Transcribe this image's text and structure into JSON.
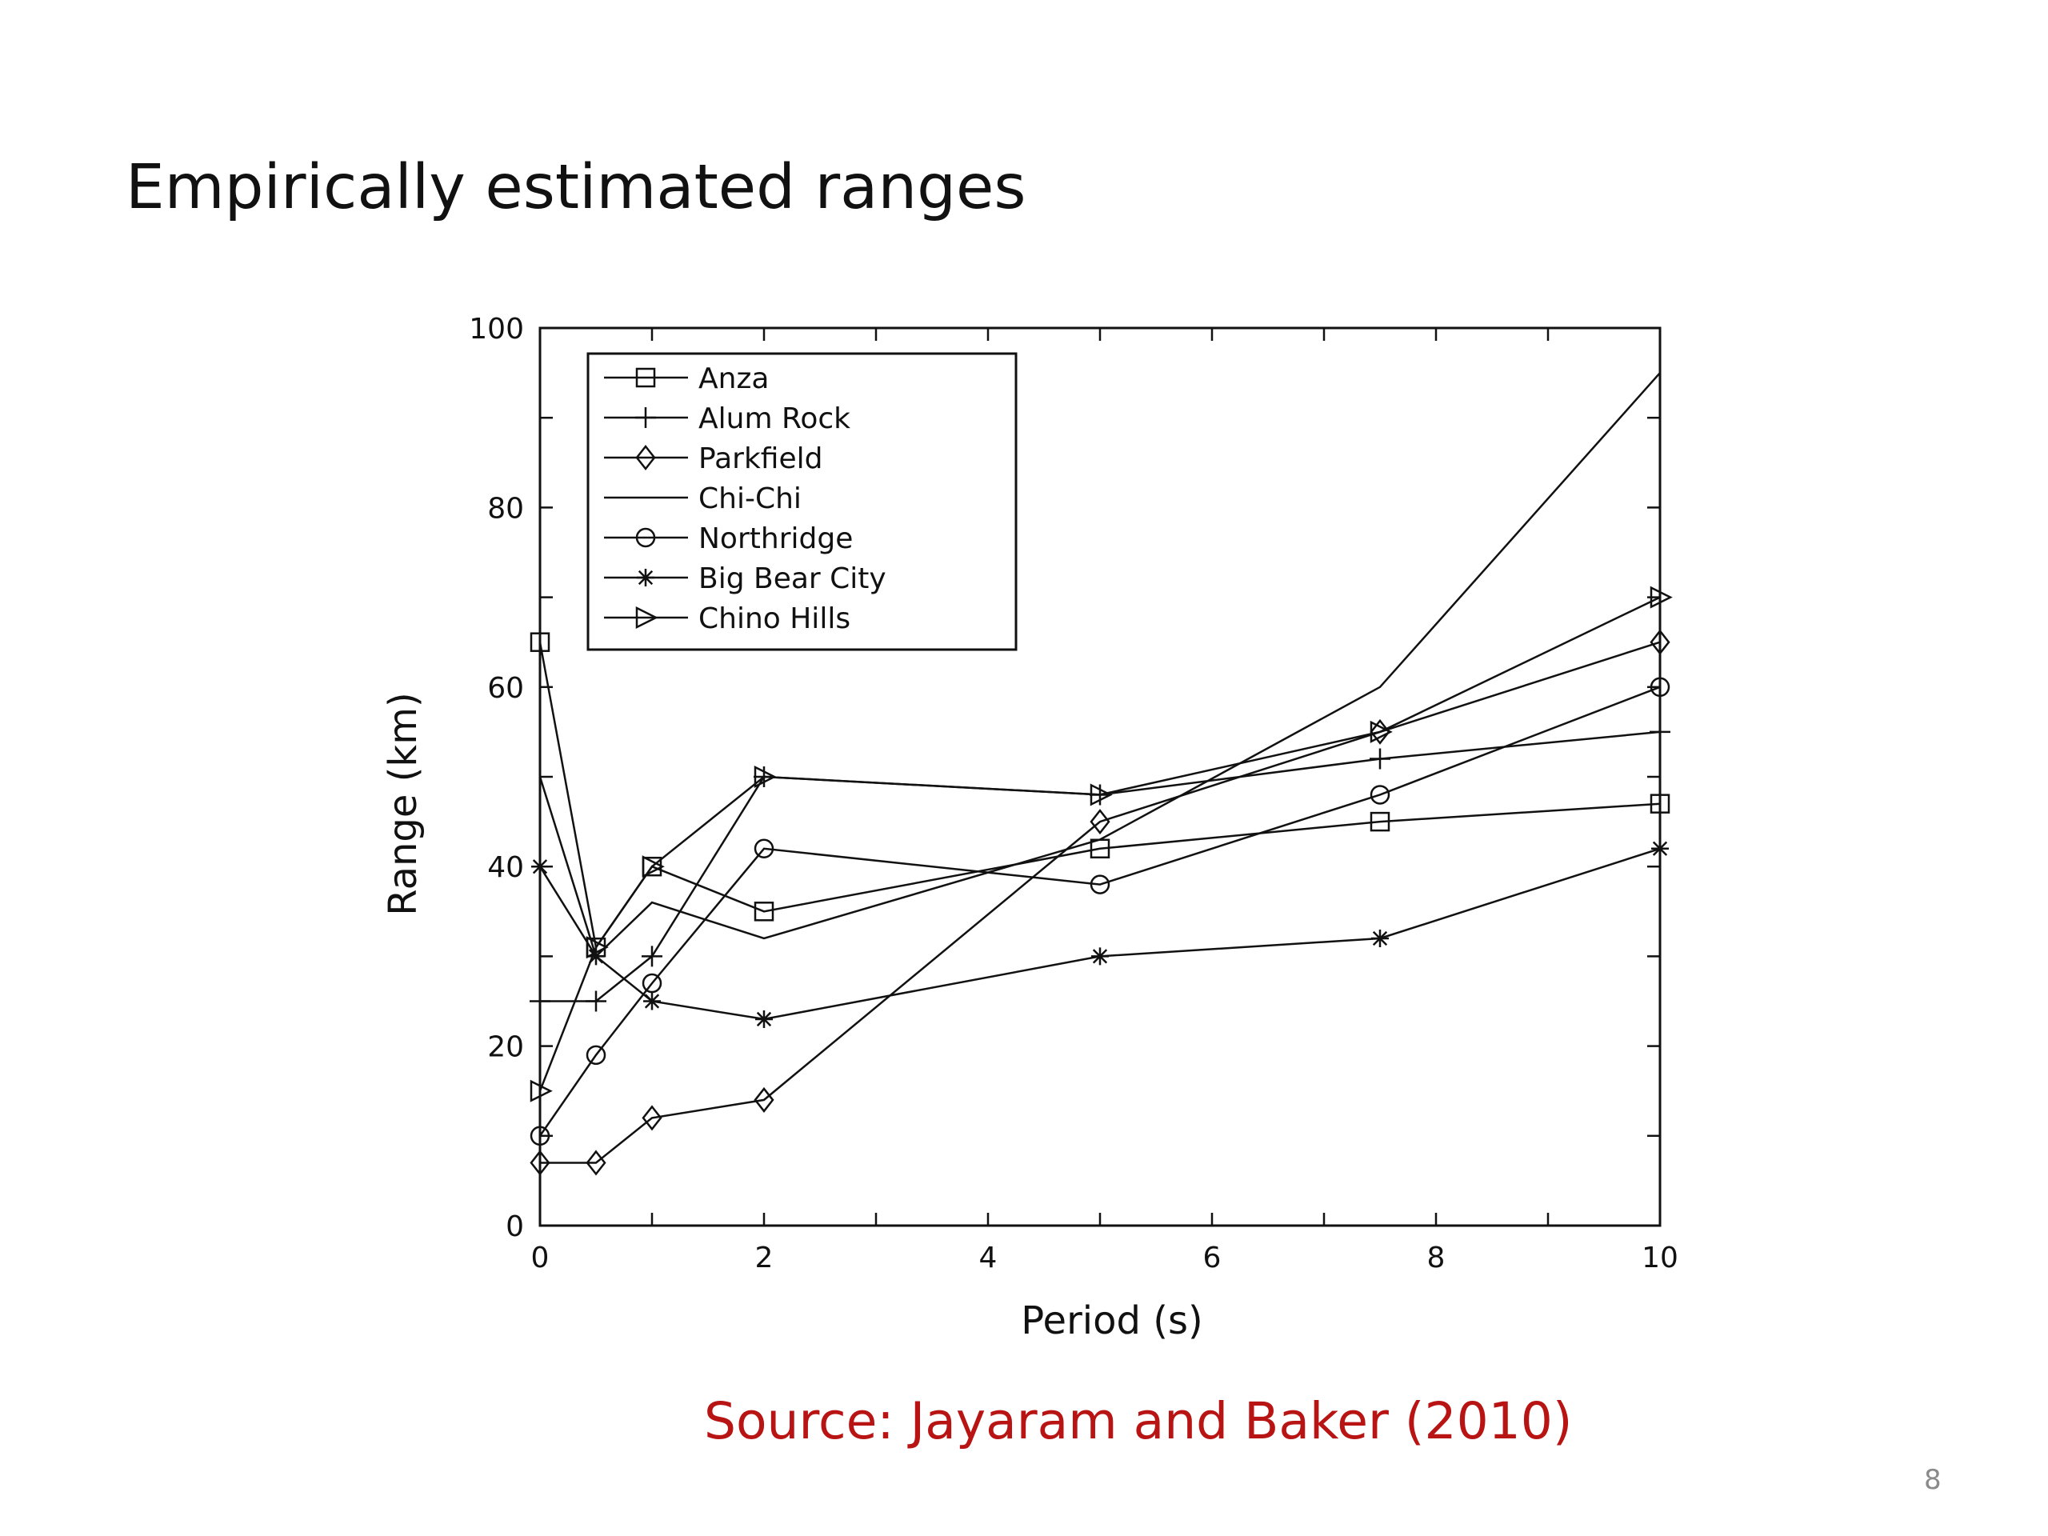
{
  "slide": {
    "title": "Empirically estimated ranges",
    "source": "Source: Jayaram and Baker (2010)",
    "page_number": "8",
    "source_color": "#b81414"
  },
  "chart_data": {
    "type": "line",
    "title": "",
    "xlabel": "Period (s)",
    "ylabel": "Range (km)",
    "xlim": [
      0,
      10
    ],
    "ylim": [
      0,
      100
    ],
    "xticks": [
      0,
      2,
      4,
      6,
      8,
      10
    ],
    "yticks": [
      0,
      20,
      40,
      60,
      80,
      100
    ],
    "grid": false,
    "legend_position": "top-left",
    "x": [
      0,
      0.5,
      1,
      2,
      5,
      7.5,
      10
    ],
    "series": [
      {
        "name": "Anza",
        "marker": "square",
        "values": [
          65,
          31,
          40,
          35,
          42,
          45,
          47
        ]
      },
      {
        "name": "Alum Rock",
        "marker": "plus",
        "values": [
          25,
          25,
          30,
          50,
          48,
          52,
          55
        ]
      },
      {
        "name": "Parkfield",
        "marker": "diamond",
        "values": [
          7,
          7,
          12,
          14,
          45,
          55,
          65
        ]
      },
      {
        "name": "Chi-Chi",
        "marker": "none",
        "values": [
          50,
          30,
          36,
          32,
          43,
          60,
          95
        ]
      },
      {
        "name": "Northridge",
        "marker": "circle",
        "values": [
          10,
          19,
          27,
          42,
          38,
          48,
          60
        ]
      },
      {
        "name": "Big Bear City",
        "marker": "asterisk",
        "values": [
          40,
          30,
          25,
          23,
          30,
          32,
          42
        ]
      },
      {
        "name": "Chino Hills",
        "marker": "triangle-right",
        "values": [
          15,
          31,
          40,
          50,
          48,
          55,
          70
        ]
      }
    ]
  }
}
